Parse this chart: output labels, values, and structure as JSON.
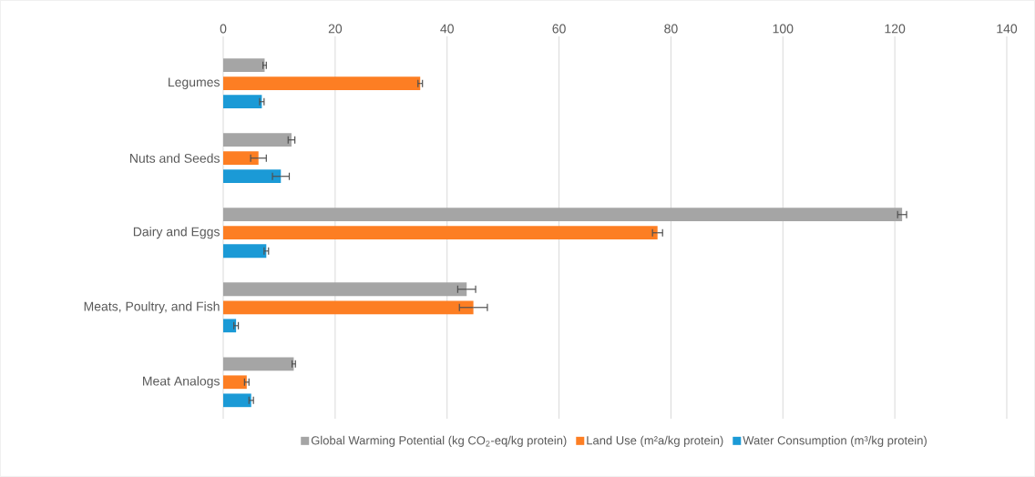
{
  "chart_data": {
    "type": "bar",
    "orientation": "horizontal",
    "categories": [
      "Legumes",
      "Nuts and Seeds",
      "Dairy and Eggs",
      "Meats, Poultry, and Fish",
      "Meat Analogs"
    ],
    "series": [
      {
        "name": "Global Warming Potential (kg CO$_{2}$-eq/kg protein)",
        "color": "#a5a5a5",
        "values": [
          7.4,
          12.2,
          121.3,
          43.5,
          12.6
        ],
        "errors": [
          0.3,
          0.6,
          0.8,
          1.6,
          0.3
        ]
      },
      {
        "name": "Land Use (m²a/kg protein)",
        "color": "#fd7e23",
        "values": [
          35.2,
          6.3,
          77.6,
          44.7,
          4.2
        ],
        "errors": [
          0.4,
          1.4,
          0.9,
          2.5,
          0.4
        ]
      },
      {
        "name": "Water Consumption (m³/kg protein)",
        "color": "#1b9ad6",
        "values": [
          6.9,
          10.3,
          7.7,
          2.3,
          5.0
        ],
        "errors": [
          0.4,
          1.5,
          0.4,
          0.4,
          0.4
        ]
      }
    ],
    "xlim": [
      0,
      140
    ],
    "xticks": [
      0,
      20,
      40,
      60,
      80,
      100,
      120,
      140
    ],
    "grid": "x",
    "legend": "bottom"
  }
}
